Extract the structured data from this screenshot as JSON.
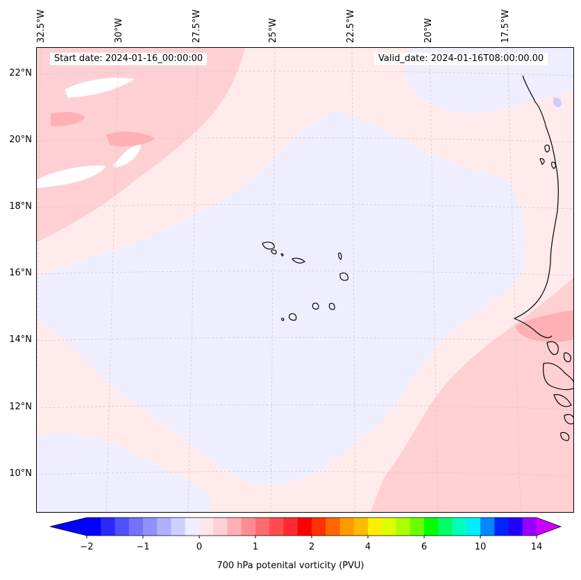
{
  "map": {
    "start_date": "Start date: 2024-01-16_00:00:00",
    "valid_date": "Valid_date: 2024-01-16T08:00:00.00",
    "lon_labels": [
      "32.5°W",
      "30°W",
      "27.5°W",
      "25°W",
      "22.5°W",
      "20°W",
      "17.5°W"
    ],
    "lat_labels": [
      "22°N",
      "20°N",
      "18°N",
      "16°N",
      "14°N",
      "12°N",
      "10°N"
    ],
    "colors": {
      "land_outline": "#000000",
      "gridline": "#bbbbbb",
      "light_pink": "#ffe6e8",
      "pink": "#ffd0d3",
      "mid_pink": "#ffb0b5",
      "pale_blue": "#eeeeff",
      "white": "#ffffff",
      "blue_patch": "#ccccff"
    }
  },
  "colorbar": {
    "label": "700 hPa potenital vorticity (PVU)",
    "ticks": [
      "−2",
      "−1",
      "0",
      "1",
      "2",
      "4",
      "6",
      "10",
      "14"
    ],
    "tick_values": [
      -2,
      -1,
      0,
      1,
      2,
      4,
      6,
      10,
      14
    ],
    "colors": [
      "#0000ff",
      "#2a2aff",
      "#5050ff",
      "#7272ff",
      "#9090ff",
      "#b0b0ff",
      "#d0d0ff",
      "#eeeeff",
      "#ffe6e8",
      "#ffd0d3",
      "#ffb0b5",
      "#ff8c92",
      "#ff6a70",
      "#ff4a50",
      "#ff2a30",
      "#ff0000",
      "#ff3300",
      "#ff6600",
      "#ff9900",
      "#ffbb00",
      "#ffee00",
      "#ddff00",
      "#aaff00",
      "#66ff00",
      "#00ff00",
      "#00ff66",
      "#00ffbb",
      "#00eeff",
      "#0088ff",
      "#0022ff",
      "#2200ff",
      "#9900ff"
    ],
    "extend_min_color": "#0000ff",
    "extend_max_color": "#cc00ff"
  }
}
